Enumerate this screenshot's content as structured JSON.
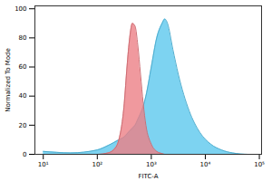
{
  "chart_data": {
    "type": "area",
    "x_label": "FITC-A",
    "y_label": "Normalized To Mode",
    "log": "x",
    "xlim": [
      7,
      110000
    ],
    "xticks": [
      {
        "value": 10,
        "label": "10¹"
      },
      {
        "value": 100,
        "label": "10²"
      },
      {
        "value": 1000,
        "label": "10³"
      },
      {
        "value": 10000,
        "label": "10⁴"
      },
      {
        "value": 100000,
        "label": "10⁵"
      }
    ],
    "ylim": [
      0,
      102
    ],
    "yticks": [
      0,
      20,
      40,
      60,
      80,
      100
    ],
    "x": [
      10,
      32,
      100,
      158,
      200,
      251,
      316,
      355,
      398,
      447,
      501,
      562,
      631,
      708,
      794,
      1000,
      1259,
      1585,
      1778,
      1995,
      2512,
      3162,
      5012,
      7943,
      12589,
      19953,
      31623,
      63096,
      100000
    ],
    "series": [
      {
        "color": "#5cc8ee",
        "values": [
          2,
          1,
          3,
          6,
          8,
          10,
          12,
          14,
          16,
          18,
          20,
          24,
          28,
          33,
          40,
          60,
          80,
          90,
          93,
          90,
          72,
          55,
          30,
          15,
          7,
          3,
          1,
          0,
          0
        ]
      },
      {
        "color": "#ec7f86",
        "values": [
          0,
          0,
          0,
          1,
          3,
          10,
          35,
          60,
          80,
          90,
          88,
          75,
          55,
          35,
          20,
          7,
          2,
          0.5,
          0,
          0,
          0,
          0,
          0,
          0,
          0,
          0,
          0,
          0,
          0
        ]
      }
    ]
  }
}
